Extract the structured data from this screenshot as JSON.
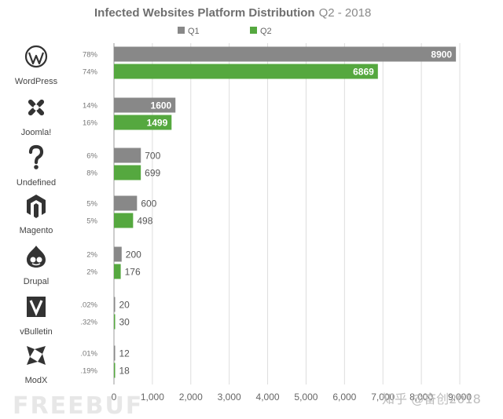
{
  "chart_data": {
    "type": "bar",
    "orientation": "horizontal",
    "title": "Infected Websites Platform Distribution",
    "subtitle": "Q2 - 2018",
    "categories": [
      "WordPress",
      "Joomla!",
      "Undefined",
      "Magento",
      "Drupal",
      "vBulletin",
      "ModX"
    ],
    "series": [
      {
        "name": "Q1",
        "color": "#888888",
        "values": [
          8900,
          1600,
          700,
          600,
          200,
          20,
          12
        ],
        "percent_labels": [
          "78%",
          "14%",
          "6%",
          "5%",
          "2%",
          ".02%",
          ".01%"
        ]
      },
      {
        "name": "Q2",
        "color": "#55a83f",
        "values": [
          6869,
          1499,
          699,
          498,
          176,
          30,
          18
        ],
        "percent_labels": [
          "74%",
          "16%",
          "8%",
          "5%",
          "2%",
          ".32%",
          ".19%"
        ]
      }
    ],
    "xlim": [
      0,
      9000
    ],
    "x_ticks": [
      "0",
      "1,000",
      "2,000",
      "3,000",
      "4,000",
      "5,000",
      "6,000",
      "7,000",
      "8,000",
      "9,000"
    ],
    "grid": true,
    "legend_position": "top-center",
    "category_icons": [
      "wordpress-icon",
      "joomla-icon",
      "question-mark-icon",
      "magento-icon",
      "drupal-icon",
      "vbulletin-icon",
      "modx-icon"
    ]
  },
  "watermarks": {
    "left": "FREEBUF",
    "right": "知乎 @奋创2018"
  }
}
